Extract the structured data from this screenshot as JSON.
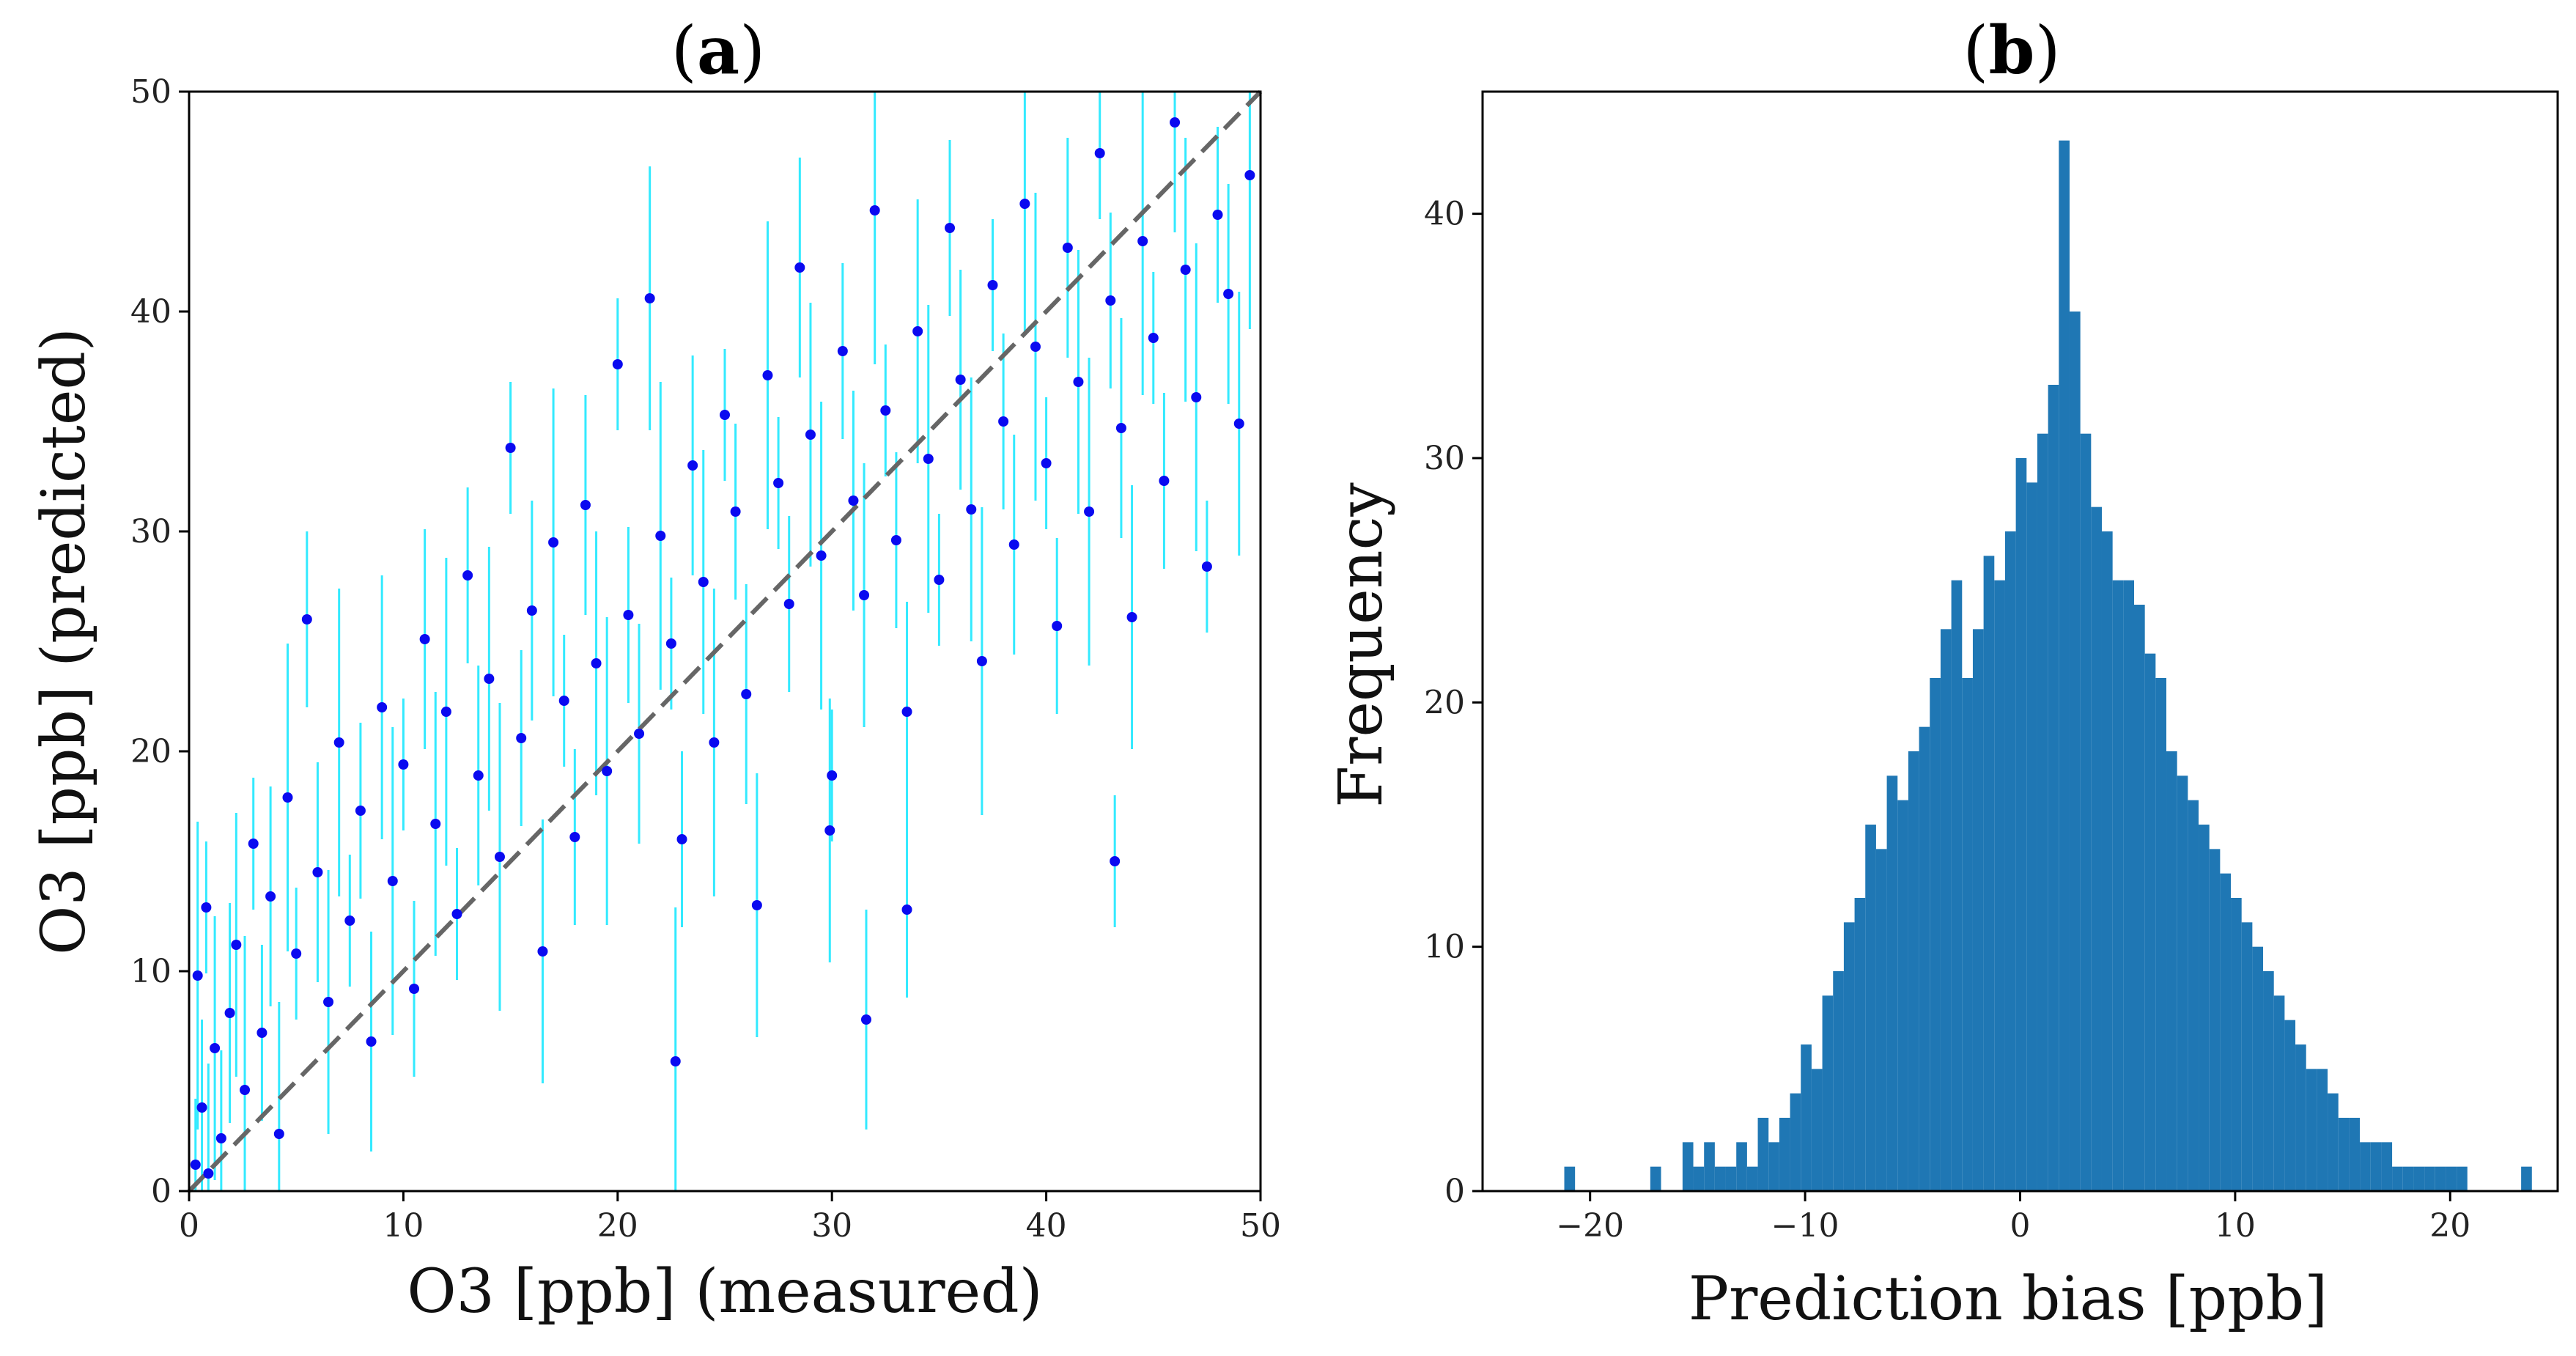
{
  "chart_data": [
    {
      "type": "scatter",
      "title": "(a)",
      "title_letter": "a",
      "xlabel": "O3 [ppb] (measured)",
      "ylabel": "O3 [ppb] (predicted)",
      "xlim": [
        0,
        50
      ],
      "ylim": [
        0,
        50
      ],
      "xticks": [
        "0",
        "10",
        "20",
        "30",
        "40",
        "50"
      ],
      "yticks": [
        "0",
        "10",
        "20",
        "30",
        "40",
        "50"
      ],
      "reference_line": {
        "x": [
          0,
          50
        ],
        "y": [
          0,
          50
        ],
        "style": "dashed"
      },
      "colors": {
        "points": "#0a0af0",
        "error_bars": "#00e5ff",
        "reference": "#666666"
      },
      "series": [
        {
          "name": "predictions",
          "points": [
            [
              0.3,
              1.2
            ],
            [
              0.6,
              3.8
            ],
            [
              0.9,
              0.8
            ],
            [
              1.2,
              6.5
            ],
            [
              0.4,
              9.8
            ],
            [
              0.8,
              12.9
            ],
            [
              1.5,
              2.4
            ],
            [
              1.9,
              8.1
            ],
            [
              2.2,
              11.2
            ],
            [
              2.6,
              4.6
            ],
            [
              3.0,
              15.8
            ],
            [
              3.4,
              7.2
            ],
            [
              3.8,
              13.4
            ],
            [
              4.2,
              2.6
            ],
            [
              4.6,
              17.9
            ],
            [
              5.0,
              10.8
            ],
            [
              5.5,
              26.0
            ],
            [
              6.0,
              14.5
            ],
            [
              6.5,
              8.6
            ],
            [
              7.0,
              20.4
            ],
            [
              7.5,
              12.3
            ],
            [
              8.0,
              17.3
            ],
            [
              8.5,
              6.8
            ],
            [
              9.0,
              22.0
            ],
            [
              9.5,
              14.1
            ],
            [
              10.0,
              19.4
            ],
            [
              10.5,
              9.2
            ],
            [
              11.0,
              25.1
            ],
            [
              11.5,
              16.7
            ],
            [
              12.0,
              21.8
            ],
            [
              12.5,
              12.6
            ],
            [
              13.0,
              28.0
            ],
            [
              13.5,
              18.9
            ],
            [
              14.0,
              23.3
            ],
            [
              14.5,
              15.2
            ],
            [
              15.0,
              33.8
            ],
            [
              15.5,
              20.6
            ],
            [
              16.0,
              26.4
            ],
            [
              16.5,
              10.9
            ],
            [
              17.0,
              29.5
            ],
            [
              17.5,
              22.3
            ],
            [
              18.0,
              16.1
            ],
            [
              18.5,
              31.2
            ],
            [
              19.0,
              24.0
            ],
            [
              19.5,
              19.1
            ],
            [
              20.0,
              37.6
            ],
            [
              20.5,
              26.2
            ],
            [
              21.0,
              20.8
            ],
            [
              21.5,
              40.6
            ],
            [
              22.0,
              29.8
            ],
            [
              22.5,
              24.9
            ],
            [
              23.0,
              16.0
            ],
            [
              23.5,
              33.0
            ],
            [
              24.0,
              27.7
            ],
            [
              24.5,
              20.4
            ],
            [
              25.0,
              35.3
            ],
            [
              25.5,
              30.9
            ],
            [
              26.0,
              22.6
            ],
            [
              26.5,
              13.0
            ],
            [
              27.0,
              37.1
            ],
            [
              27.5,
              32.2
            ],
            [
              28.0,
              26.7
            ],
            [
              28.5,
              42.0
            ],
            [
              29.0,
              34.4
            ],
            [
              29.5,
              28.9
            ],
            [
              30.0,
              18.9
            ],
            [
              30.5,
              38.2
            ],
            [
              31.0,
              31.4
            ],
            [
              31.5,
              27.1
            ],
            [
              32.0,
              44.6
            ],
            [
              32.5,
              35.5
            ],
            [
              33.0,
              29.6
            ],
            [
              33.5,
              21.8
            ],
            [
              34.0,
              39.1
            ],
            [
              34.5,
              33.3
            ],
            [
              35.0,
              27.8
            ],
            [
              35.5,
              43.8
            ],
            [
              36.0,
              36.9
            ],
            [
              36.5,
              31.0
            ],
            [
              37.0,
              24.1
            ],
            [
              37.5,
              41.2
            ],
            [
              38.0,
              35.0
            ],
            [
              38.5,
              29.4
            ],
            [
              39.0,
              44.9
            ],
            [
              39.5,
              38.4
            ],
            [
              40.0,
              33.1
            ],
            [
              40.5,
              25.7
            ],
            [
              41.0,
              42.9
            ],
            [
              41.5,
              36.8
            ],
            [
              42.0,
              30.9
            ],
            [
              42.5,
              47.2
            ],
            [
              43.0,
              40.5
            ],
            [
              43.5,
              34.7
            ],
            [
              44.0,
              26.1
            ],
            [
              44.5,
              43.2
            ],
            [
              45.0,
              38.8
            ],
            [
              45.5,
              32.3
            ],
            [
              46.0,
              48.6
            ],
            [
              46.5,
              41.9
            ],
            [
              47.0,
              36.1
            ],
            [
              47.5,
              28.4
            ],
            [
              48.0,
              44.4
            ],
            [
              48.5,
              40.8
            ],
            [
              49.0,
              34.9
            ],
            [
              49.5,
              46.2
            ],
            [
              43.2,
              15.0
            ],
            [
              33.5,
              12.8
            ],
            [
              31.6,
              7.8
            ],
            [
              29.9,
              16.4
            ],
            [
              22.7,
              5.9
            ]
          ]
        }
      ]
    },
    {
      "type": "bar",
      "title": "(b)",
      "title_letter": "b",
      "xlabel": "Prediction bias [ppb]",
      "ylabel": "Frequency",
      "xlim": [
        -25,
        25
      ],
      "ylim": [
        0,
        45
      ],
      "xticks": [
        "−20",
        "−10",
        "0",
        "10",
        "20"
      ],
      "xtick_values": [
        -20,
        -10,
        0,
        10,
        20
      ],
      "yticks": [
        "0",
        "10",
        "20",
        "30",
        "40"
      ],
      "ytick_values": [
        0,
        10,
        20,
        30,
        40
      ],
      "bin_start": -21.2,
      "bin_width": 0.5,
      "values": [
        1,
        0,
        0,
        0,
        0,
        0,
        0,
        0,
        1,
        0,
        0,
        2,
        1,
        2,
        1,
        1,
        2,
        1,
        3,
        2,
        3,
        4,
        6,
        5,
        8,
        9,
        11,
        12,
        15,
        14,
        17,
        16,
        18,
        19,
        21,
        23,
        25,
        21,
        23,
        26,
        25,
        27,
        30,
        29,
        31,
        33,
        43,
        36,
        31,
        28,
        27,
        25,
        25,
        24,
        22,
        21,
        18,
        17,
        16,
        15,
        14,
        13,
        12,
        11,
        10,
        9,
        8,
        7,
        6,
        5,
        5,
        4,
        3,
        3,
        2,
        2,
        2,
        1,
        1,
        1,
        1,
        1,
        1,
        1,
        0,
        0,
        0,
        0,
        0,
        1
      ],
      "colors": {
        "bars": "#1f77b4"
      }
    }
  ]
}
